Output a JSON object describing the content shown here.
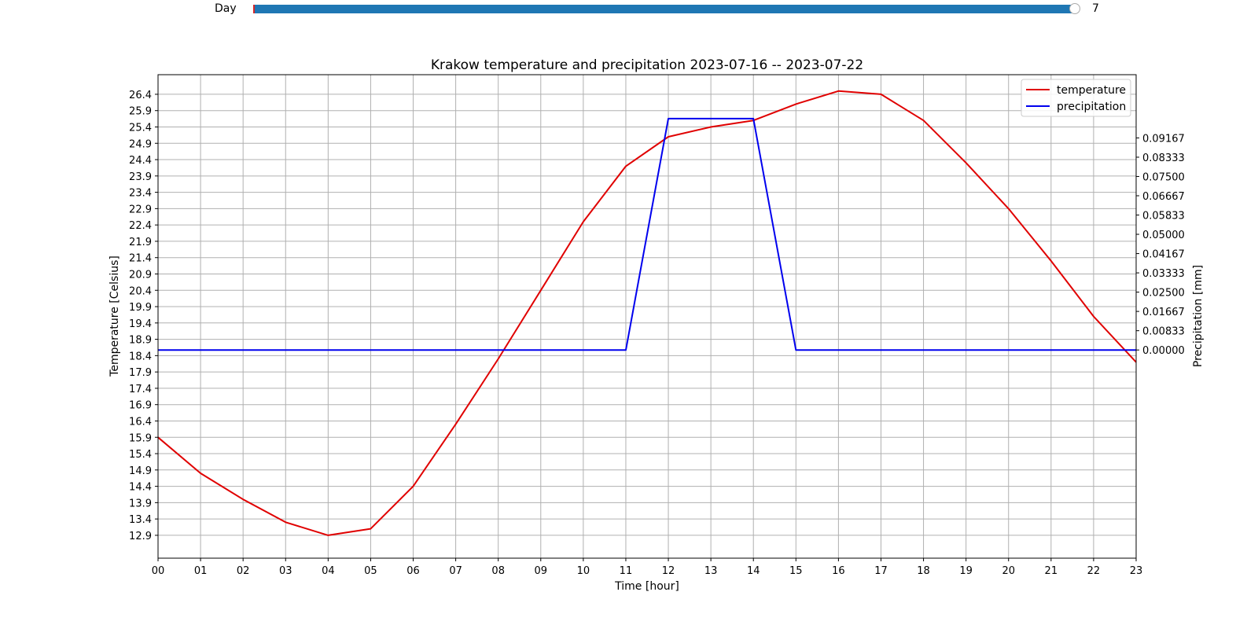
{
  "slider": {
    "label": "Day",
    "value": "7",
    "fraction": 1.0,
    "track_color": "#1f77b4"
  },
  "chart_data": {
    "type": "line",
    "title": "Krakow temperature and precipitation 2023-07-16  --  2023-07-22",
    "xlabel": "Time [hour]",
    "ylabel": "Temperature [Celsius]",
    "y2label": "Precipitation [mm]",
    "grid": true,
    "legend_position": "top-right",
    "x": [
      "00",
      "01",
      "02",
      "03",
      "04",
      "05",
      "06",
      "07",
      "08",
      "09",
      "10",
      "11",
      "12",
      "13",
      "14",
      "15",
      "16",
      "17",
      "18",
      "19",
      "20",
      "21",
      "22",
      "23"
    ],
    "xlim": [
      0,
      23
    ],
    "ylim": [
      12.2,
      27.0
    ],
    "y2lim": [
      -0.09,
      0.119
    ],
    "yticks": [
      "12.9",
      "13.4",
      "13.9",
      "14.4",
      "14.9",
      "15.4",
      "15.9",
      "16.4",
      "16.9",
      "17.4",
      "17.9",
      "18.4",
      "18.9",
      "19.4",
      "19.9",
      "20.4",
      "20.9",
      "21.4",
      "21.9",
      "22.4",
      "22.9",
      "23.4",
      "23.9",
      "24.4",
      "24.9",
      "25.4",
      "25.9",
      "26.4"
    ],
    "y2ticks": [
      "0.00000",
      "0.00833",
      "0.01667",
      "0.02500",
      "0.03333",
      "0.04167",
      "0.05000",
      "0.05833",
      "0.06667",
      "0.07500",
      "0.08333",
      "0.09167"
    ],
    "series": [
      {
        "name": "temperature",
        "axis": "left",
        "color": "#e00000",
        "values": [
          15.9,
          14.8,
          14.0,
          13.3,
          12.9,
          13.1,
          14.4,
          16.3,
          18.3,
          20.4,
          22.5,
          24.2,
          25.1,
          25.4,
          25.6,
          26.1,
          26.5,
          26.4,
          25.6,
          24.3,
          22.9,
          21.3,
          19.6,
          18.2
        ]
      },
      {
        "name": "precipitation",
        "axis": "right",
        "color": "#0000ee",
        "values": [
          0,
          0,
          0,
          0,
          0,
          0,
          0,
          0,
          0,
          0,
          0,
          0,
          0.1,
          0.1,
          0.1,
          0,
          0,
          0,
          0,
          0,
          0,
          0,
          0,
          0
        ]
      }
    ]
  }
}
